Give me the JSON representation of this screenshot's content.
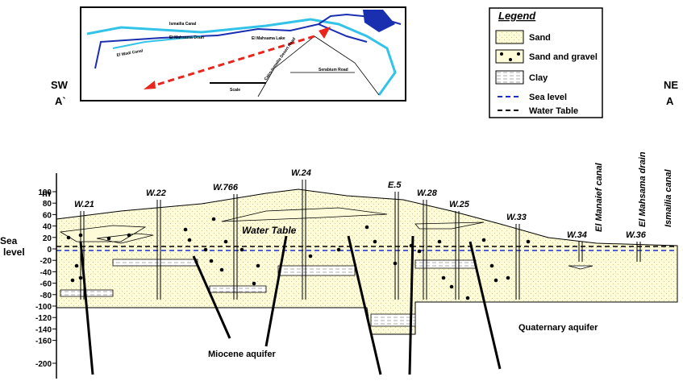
{
  "map": {
    "labels": [
      "Ismailia Canal",
      "El Mahsama Drain",
      "El Mahsama Lake",
      "El Wadi Canal",
      "Cairo-Ismailia Desert Road",
      "Serabium Road",
      "Scale"
    ]
  },
  "legend": {
    "title": "Legend",
    "items": [
      "Sand",
      "Sand and gravel",
      "Clay",
      "Sea level",
      "Water Table"
    ]
  },
  "section": {
    "sw": "SW",
    "a_prime": "A`",
    "ne": "NE",
    "a": "A",
    "axis_unit": "m",
    "axis_ticks": [
      100,
      80,
      60,
      40,
      20,
      0,
      -20,
      -40,
      -60,
      -80,
      -100,
      -120,
      -140,
      -160,
      -200
    ],
    "sea_level": "Sea level",
    "wells": [
      "W.21",
      "W.22",
      "W.766",
      "W.24",
      "E.5",
      "W.28",
      "W.25",
      "W.33",
      "W.34",
      "W.36"
    ],
    "canals": [
      "El Manaief canal",
      "El Mahsama drain",
      "Ismailia canal"
    ],
    "water_table": "Water Table",
    "miocene": "Miocene aquifer",
    "quaternary": "Quaternary aquifer"
  }
}
